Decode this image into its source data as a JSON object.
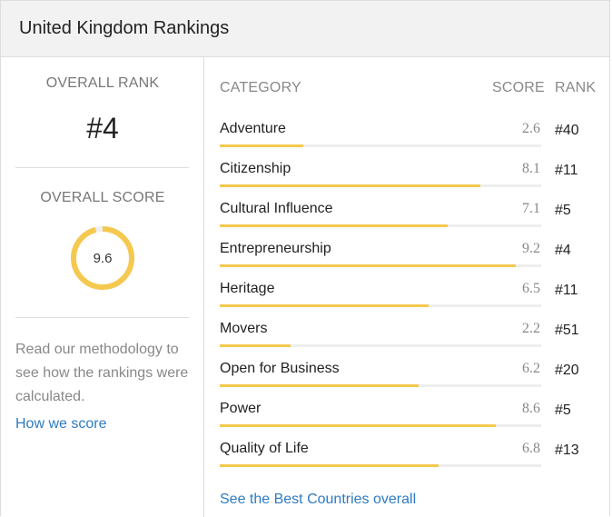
{
  "header": {
    "title": "United Kingdom Rankings"
  },
  "overall": {
    "rank_label": "OVERALL RANK",
    "rank_value": "#4",
    "score_label": "OVERALL SCORE",
    "score_value": "9.6",
    "score_fraction": 0.96,
    "ring_color": "#f5c94f"
  },
  "methodology": {
    "text": "Read our methodology to see how the rankings were calculated.",
    "link": "How we score"
  },
  "table": {
    "headers": {
      "category": "CATEGORY",
      "score": "SCORE",
      "rank": "RANK"
    },
    "rows": [
      {
        "name": "Adventure",
        "score": "2.6",
        "rank": "#40"
      },
      {
        "name": "Citizenship",
        "score": "8.1",
        "rank": "#11"
      },
      {
        "name": "Cultural Influence",
        "score": "7.1",
        "rank": "#5"
      },
      {
        "name": "Entrepreneurship",
        "score": "9.2",
        "rank": "#4"
      },
      {
        "name": "Heritage",
        "score": "6.5",
        "rank": "#11"
      },
      {
        "name": "Movers",
        "score": "2.2",
        "rank": "#51"
      },
      {
        "name": "Open for Business",
        "score": "6.2",
        "rank": "#20"
      },
      {
        "name": "Power",
        "score": "8.6",
        "rank": "#5"
      },
      {
        "name": "Quality of Life",
        "score": "6.8",
        "rank": "#13"
      }
    ],
    "bar_color": "#f5c94f",
    "score_max": 10
  },
  "footer": {
    "link": "See the Best Countries overall"
  },
  "colors": {
    "link": "#2d7bc4",
    "header_bg": "#f2f2f2"
  }
}
